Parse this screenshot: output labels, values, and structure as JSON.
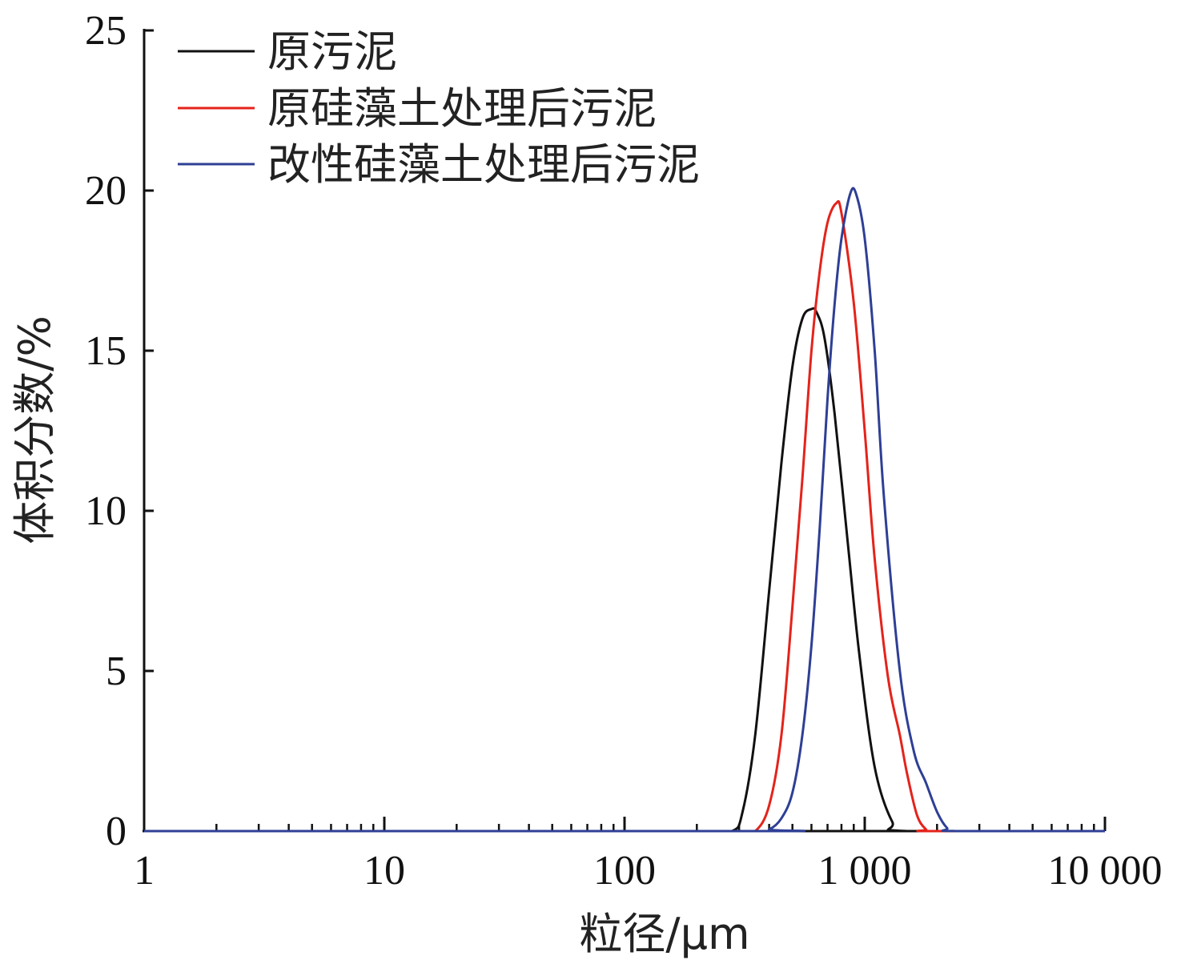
{
  "chart_data": {
    "type": "line",
    "xscale": "log",
    "xlim": [
      1,
      10000
    ],
    "ylim": [
      0,
      25
    ],
    "xlabel": "粒径/μm",
    "ylabel": "体积分数/%",
    "xticks": [
      1,
      10,
      100,
      1000,
      10000
    ],
    "xtick_labels": [
      "1",
      "10",
      "100",
      "1 000",
      "10 000"
    ],
    "yticks": [
      0,
      5,
      10,
      15,
      20,
      25
    ],
    "ytick_labels": [
      "0",
      "5",
      "10",
      "15",
      "20",
      "25"
    ],
    "legend_position": "top-left",
    "grid": false,
    "series": [
      {
        "name": "原污泥",
        "color": "#111111",
        "x": [
          1,
          200,
          280,
          310,
          350,
          400,
          450,
          500,
          550,
          600,
          630,
          680,
          750,
          850,
          950,
          1100,
          1300,
          1500,
          10000
        ],
        "y": [
          0,
          0,
          0,
          0.6,
          3,
          7.5,
          11.5,
          14.5,
          16,
          16.3,
          16.2,
          15.4,
          13,
          9,
          5.5,
          2,
          0.3,
          0,
          0
        ]
      },
      {
        "name": "原硅藻土处理后污泥",
        "color": "#e4231b",
        "x": [
          1,
          300,
          350,
          400,
          450,
          500,
          550,
          600,
          650,
          700,
          760,
          800,
          900,
          1000,
          1100,
          1250,
          1400,
          1500,
          1650,
          1800,
          1900,
          10000
        ],
        "y": [
          0,
          0,
          0,
          0.8,
          3,
          7,
          11,
          15,
          17.5,
          19,
          19.6,
          19.3,
          16.5,
          12.5,
          8.5,
          4.8,
          3,
          1.8,
          0.5,
          0.05,
          0,
          0
        ]
      },
      {
        "name": "改性硅藻土处理后污泥",
        "color": "#2e3f95",
        "x": [
          1,
          350,
          400,
          450,
          500,
          550,
          600,
          650,
          700,
          750,
          800,
          870,
          920,
          1000,
          1100,
          1200,
          1400,
          1600,
          1800,
          2000,
          2200,
          2400,
          10000
        ],
        "y": [
          0,
          0,
          0.05,
          0.4,
          1.2,
          3,
          5.8,
          9.5,
          13.5,
          16.5,
          18.5,
          19.9,
          19.9,
          18.5,
          15,
          10.5,
          5,
          2.5,
          1.5,
          0.6,
          0.1,
          0,
          0
        ]
      }
    ]
  }
}
